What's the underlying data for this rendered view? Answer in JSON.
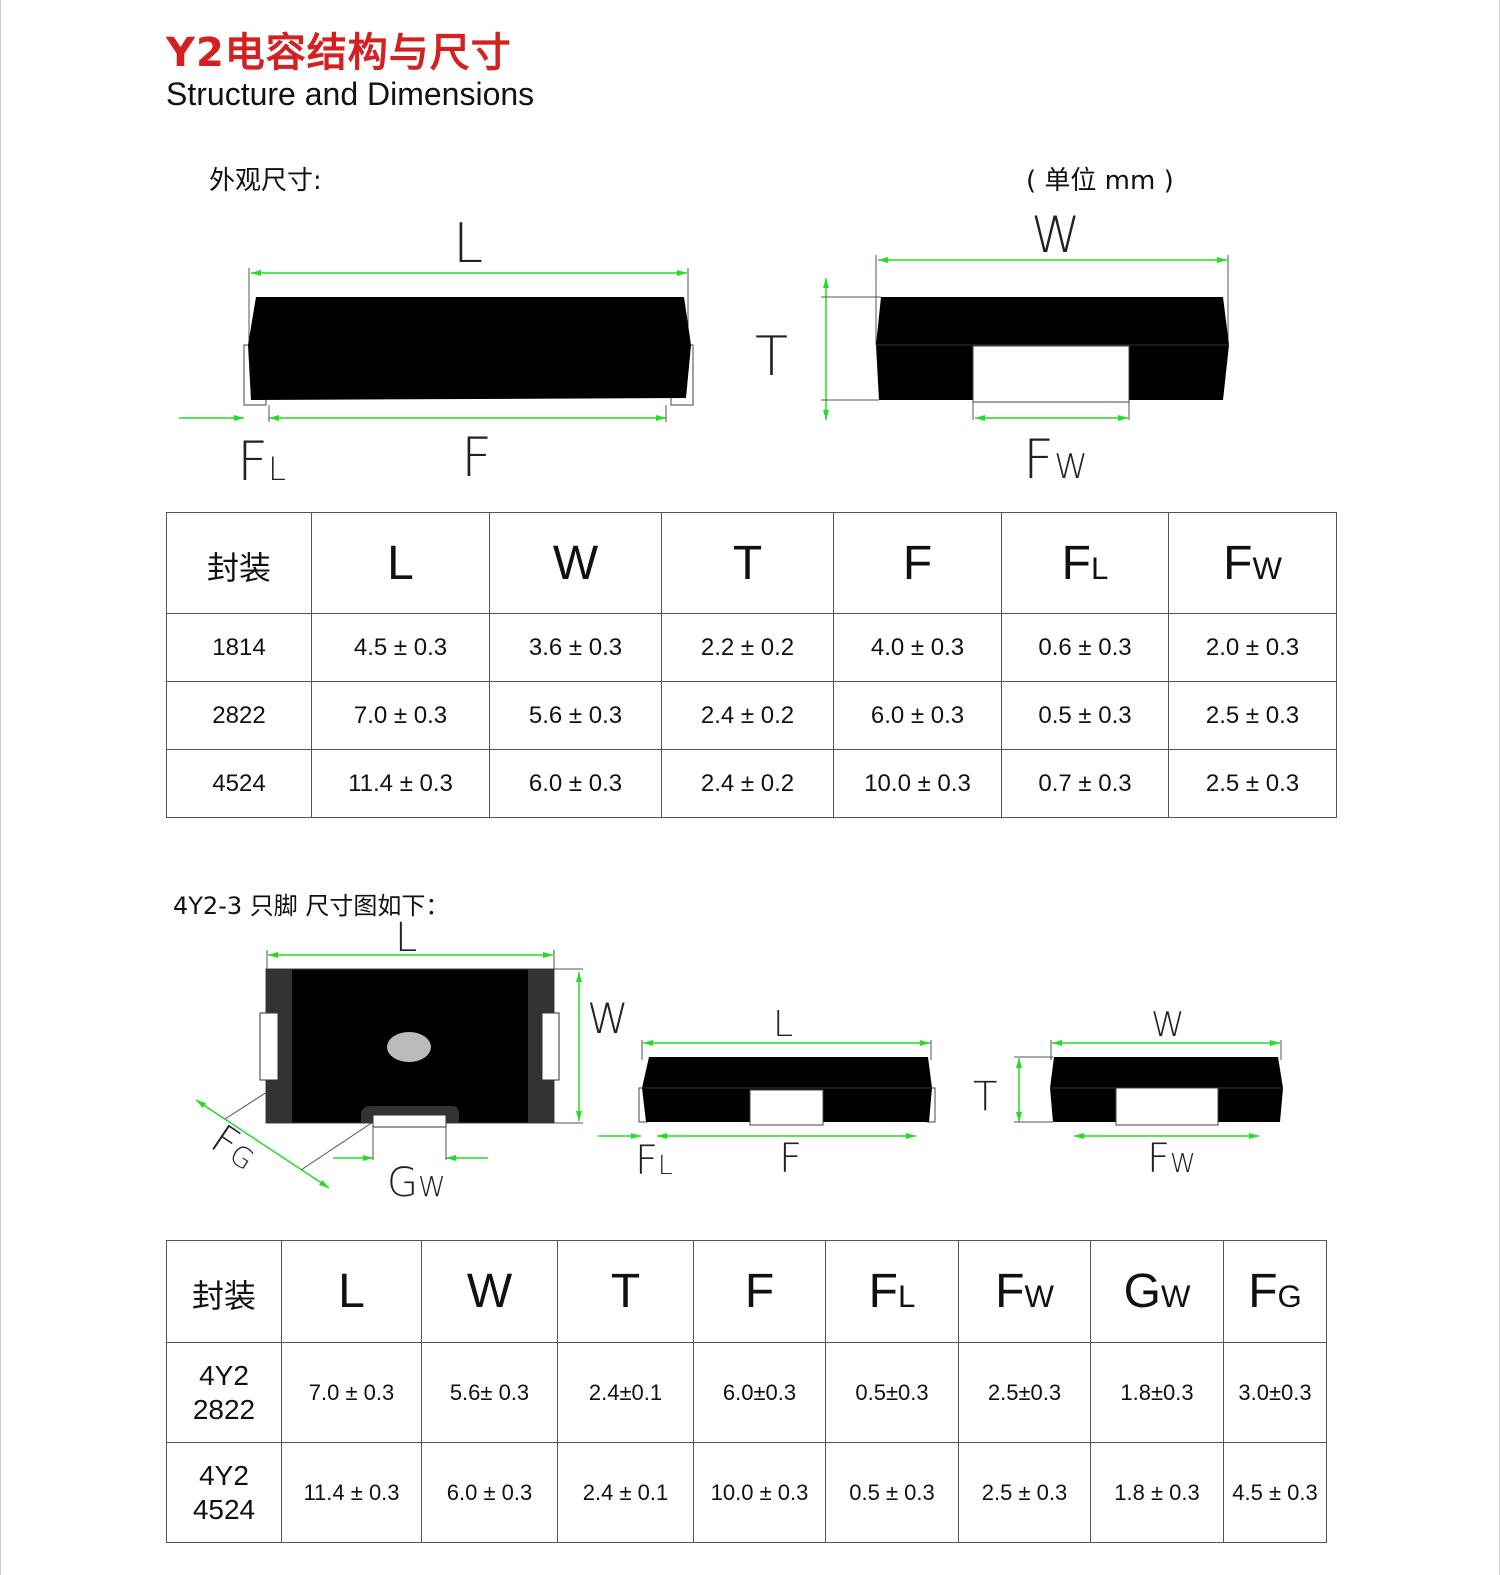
{
  "title": "Y2电容结构与尺寸",
  "subtitle": "Structure and Dimensions",
  "section1_label": "外观尺寸:",
  "unit_label": "( 单位 mm )",
  "section2_label": "4Y2-3 只脚  尺寸图如下：",
  "colors": {
    "title": "#d42020",
    "dimension_line": "#22dd22",
    "body": "#000000"
  },
  "diagram_labels": {
    "L": "L",
    "W": "W",
    "T": "T",
    "F": "F",
    "FL": {
      "main": "F",
      "sub": "L"
    },
    "FW": {
      "main": "F",
      "sub": "W"
    },
    "GW": {
      "main": "G",
      "sub": "W"
    },
    "FG": {
      "main": "F",
      "sub": "G"
    }
  },
  "table1": {
    "headers": [
      {
        "main": "封装",
        "sub": ""
      },
      {
        "main": "L",
        "sub": ""
      },
      {
        "main": "W",
        "sub": ""
      },
      {
        "main": "T",
        "sub": ""
      },
      {
        "main": "F",
        "sub": ""
      },
      {
        "main": "F",
        "sub": "L"
      },
      {
        "main": "F",
        "sub": "W"
      }
    ],
    "rows": [
      [
        "1814",
        "4.5 ± 0.3",
        "3.6 ± 0.3",
        "2.2 ± 0.2",
        "4.0 ± 0.3",
        "0.6 ± 0.3",
        "2.0 ± 0.3"
      ],
      [
        "2822",
        "7.0 ± 0.3",
        "5.6 ± 0.3",
        "2.4 ± 0.2",
        "6.0 ± 0.3",
        "0.5 ± 0.3",
        "2.5 ± 0.3"
      ],
      [
        "4524",
        "11.4 ± 0.3",
        "6.0 ± 0.3",
        "2.4 ± 0.2",
        "10.0 ± 0.3",
        "0.7 ± 0.3",
        "2.5 ± 0.3"
      ]
    ]
  },
  "table2": {
    "headers": [
      {
        "main": "封装",
        "sub": ""
      },
      {
        "main": "L",
        "sub": ""
      },
      {
        "main": "W",
        "sub": ""
      },
      {
        "main": "T",
        "sub": ""
      },
      {
        "main": "F",
        "sub": ""
      },
      {
        "main": "F",
        "sub": "L"
      },
      {
        "main": "F",
        "sub": "W"
      },
      {
        "main": "G",
        "sub": "W"
      },
      {
        "main": "F",
        "sub": "G"
      }
    ],
    "rows": [
      [
        [
          "4Y2",
          "2822"
        ],
        "7.0 ± 0.3",
        "5.6± 0.3",
        "2.4±0.1",
        "6.0±0.3",
        "0.5±0.3",
        "2.5±0.3",
        "1.8±0.3",
        "3.0±0.3"
      ],
      [
        [
          "4Y2",
          "4524"
        ],
        "11.4 ± 0.3",
        "6.0 ± 0.3",
        "2.4 ± 0.1",
        "10.0 ± 0.3",
        "0.5 ± 0.3",
        "2.5 ± 0.3",
        "1.8 ± 0.3",
        "4.5 ± 0.3"
      ]
    ]
  }
}
